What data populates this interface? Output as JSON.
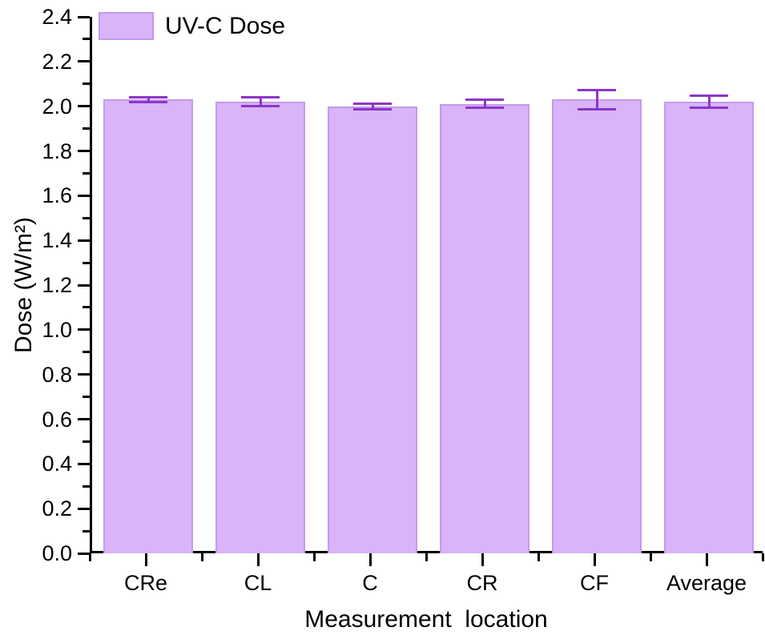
{
  "chart_data": {
    "type": "bar",
    "title": "",
    "xlabel": "Measurement  location",
    "ylabel": "Dose (W/m²)",
    "categories": [
      "CRe",
      "CL",
      "C",
      "CR",
      "CF",
      "Average"
    ],
    "series": [
      {
        "name": "UV-C Dose",
        "values": [
          2.03,
          2.02,
          2.0,
          2.01,
          2.03,
          2.02
        ],
        "errors": [
          0.01,
          0.021,
          0.013,
          0.018,
          0.042,
          0.027
        ]
      }
    ],
    "ylim": [
      0.0,
      2.4
    ],
    "ytick_step": 0.2,
    "ytick_minor_step": 0.1,
    "ytick_decimals": 1,
    "grid": false,
    "legend": {
      "label": "UV-C Dose",
      "position": "top-left"
    },
    "colors": {
      "bar_fill": "#d9b4f8",
      "bar_edge": "#c49aea",
      "error_bar": "#8c35c9",
      "axis": "#000000",
      "text": "#000000",
      "background": "#ffffff"
    }
  }
}
